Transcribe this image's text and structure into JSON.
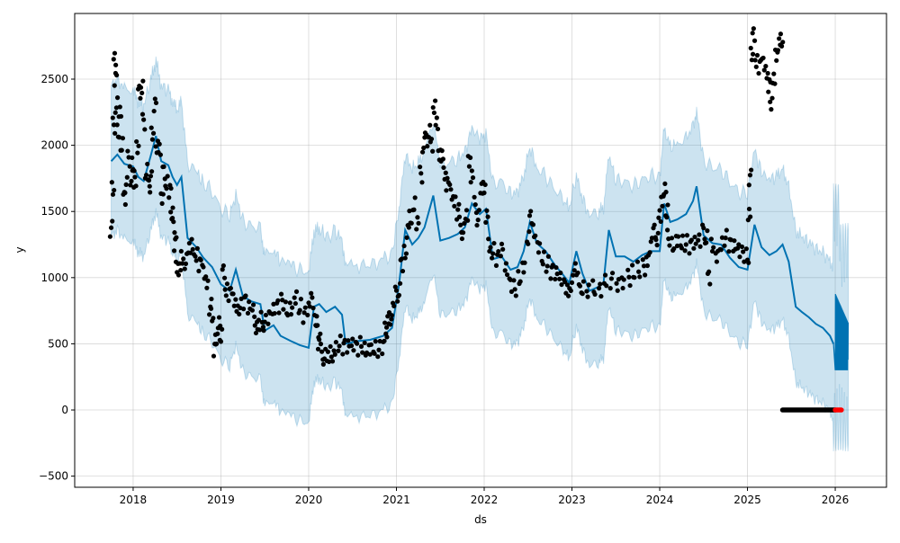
{
  "chart_data": {
    "type": "line",
    "title": "",
    "xlabel": "ds",
    "ylabel": "y",
    "xlim": [
      2017.334,
      2026.584
    ],
    "ylim": [
      -584,
      2996
    ],
    "grid": true,
    "x_ticks": [
      {
        "v": 2018,
        "label": "2018"
      },
      {
        "v": 2019,
        "label": "2019"
      },
      {
        "v": 2020,
        "label": "2020"
      },
      {
        "v": 2021,
        "label": "2021"
      },
      {
        "v": 2022,
        "label": "2022"
      },
      {
        "v": 2023,
        "label": "2023"
      },
      {
        "v": 2024,
        "label": "2024"
      },
      {
        "v": 2025,
        "label": "2025"
      },
      {
        "v": 2026,
        "label": "2026"
      }
    ],
    "y_ticks": [
      {
        "v": -500,
        "label": "−500"
      },
      {
        "v": 0,
        "label": "0"
      },
      {
        "v": 500,
        "label": "500"
      },
      {
        "v": 1000,
        "label": "1000"
      },
      {
        "v": 1500,
        "label": "1500"
      },
      {
        "v": 2000,
        "label": "2000"
      },
      {
        "v": 2500,
        "label": "2500"
      }
    ],
    "colors": {
      "forecast": "#0072B2",
      "band": "#0072B2",
      "actual": "#000000",
      "highlight": "#ff0000"
    },
    "band_halfwidth": 570,
    "forecast": [
      [
        2017.75,
        1880
      ],
      [
        2017.82,
        1930
      ],
      [
        2017.9,
        1860
      ],
      [
        2018.0,
        1840
      ],
      [
        2018.06,
        1760
      ],
      [
        2018.12,
        1730
      ],
      [
        2018.2,
        1920
      ],
      [
        2018.26,
        2070
      ],
      [
        2018.32,
        1880
      ],
      [
        2018.4,
        1850
      ],
      [
        2018.45,
        1760
      ],
      [
        2018.5,
        1700
      ],
      [
        2018.55,
        1760
      ],
      [
        2018.62,
        1300
      ],
      [
        2018.72,
        1230
      ],
      [
        2018.8,
        1150
      ],
      [
        2018.9,
        1080
      ],
      [
        2019.0,
        950
      ],
      [
        2019.1,
        900
      ],
      [
        2019.17,
        1060
      ],
      [
        2019.25,
        860
      ],
      [
        2019.35,
        820
      ],
      [
        2019.45,
        800
      ],
      [
        2019.5,
        600
      ],
      [
        2019.6,
        640
      ],
      [
        2019.68,
        560
      ],
      [
        2019.8,
        520
      ],
      [
        2019.9,
        490
      ],
      [
        2020.0,
        470
      ],
      [
        2020.06,
        780
      ],
      [
        2020.12,
        800
      ],
      [
        2020.2,
        740
      ],
      [
        2020.3,
        780
      ],
      [
        2020.38,
        720
      ],
      [
        2020.42,
        500
      ],
      [
        2020.55,
        520
      ],
      [
        2020.7,
        530
      ],
      [
        2020.85,
        560
      ],
      [
        2020.95,
        620
      ],
      [
        2021.03,
        950
      ],
      [
        2021.1,
        1360
      ],
      [
        2021.18,
        1250
      ],
      [
        2021.25,
        1300
      ],
      [
        2021.32,
        1380
      ],
      [
        2021.42,
        1620
      ],
      [
        2021.5,
        1280
      ],
      [
        2021.6,
        1300
      ],
      [
        2021.7,
        1330
      ],
      [
        2021.78,
        1380
      ],
      [
        2021.86,
        1560
      ],
      [
        2021.95,
        1480
      ],
      [
        2022.02,
        1520
      ],
      [
        2022.1,
        1140
      ],
      [
        2022.2,
        1160
      ],
      [
        2022.3,
        1060
      ],
      [
        2022.38,
        1080
      ],
      [
        2022.45,
        1200
      ],
      [
        2022.52,
        1420
      ],
      [
        2022.6,
        1260
      ],
      [
        2022.7,
        1200
      ],
      [
        2022.8,
        1100
      ],
      [
        2022.9,
        1020
      ],
      [
        2022.97,
        960
      ],
      [
        2023.05,
        1200
      ],
      [
        2023.12,
        1030
      ],
      [
        2023.2,
        900
      ],
      [
        2023.3,
        930
      ],
      [
        2023.36,
        960
      ],
      [
        2023.42,
        1360
      ],
      [
        2023.5,
        1160
      ],
      [
        2023.6,
        1160
      ],
      [
        2023.7,
        1120
      ],
      [
        2023.8,
        1170
      ],
      [
        2023.9,
        1200
      ],
      [
        2024.0,
        1200
      ],
      [
        2024.05,
        1560
      ],
      [
        2024.12,
        1420
      ],
      [
        2024.2,
        1440
      ],
      [
        2024.3,
        1480
      ],
      [
        2024.38,
        1580
      ],
      [
        2024.42,
        1690
      ],
      [
        2024.5,
        1320
      ],
      [
        2024.6,
        1260
      ],
      [
        2024.7,
        1250
      ],
      [
        2024.8,
        1150
      ],
      [
        2024.9,
        1080
      ],
      [
        2025.0,
        1060
      ],
      [
        2025.08,
        1400
      ],
      [
        2025.16,
        1230
      ],
      [
        2025.25,
        1170
      ],
      [
        2025.33,
        1200
      ],
      [
        2025.4,
        1250
      ],
      [
        2025.47,
        1120
      ],
      [
        2025.55,
        780
      ],
      [
        2025.62,
        740
      ],
      [
        2025.7,
        700
      ],
      [
        2025.78,
        650
      ],
      [
        2025.86,
        620
      ],
      [
        2025.94,
        560
      ],
      [
        2025.98,
        500
      ]
    ],
    "forecast_oscillation": {
      "x_start": 2026.0,
      "x_end": 2026.15,
      "min": 300,
      "max": 880
    },
    "actual": [
      [
        2017.75,
        1370
      ],
      [
        2017.77,
        1680
      ],
      [
        2017.78,
        2150
      ],
      [
        2017.79,
        2640
      ],
      [
        2017.8,
        2500
      ],
      [
        2017.81,
        2300
      ],
      [
        2017.83,
        2100
      ],
      [
        2017.85,
        2230
      ],
      [
        2017.87,
        2000
      ],
      [
        2017.9,
        1600
      ],
      [
        2017.92,
        1700
      ],
      [
        2017.95,
        1900
      ],
      [
        2017.98,
        1750
      ],
      [
        2018.0,
        1850
      ],
      [
        2018.02,
        1700
      ],
      [
        2018.05,
        2000
      ],
      [
        2018.07,
        2400
      ],
      [
        2018.1,
        2450
      ],
      [
        2018.12,
        2180
      ],
      [
        2018.15,
        1800
      ],
      [
        2018.18,
        1700
      ],
      [
        2018.2,
        1750
      ],
      [
        2018.22,
        2100
      ],
      [
        2018.25,
        2300
      ],
      [
        2018.27,
        2000
      ],
      [
        2018.3,
        1950
      ],
      [
        2018.33,
        1620
      ],
      [
        2018.35,
        1800
      ],
      [
        2018.38,
        1720
      ],
      [
        2018.42,
        1650
      ],
      [
        2018.44,
        1500
      ],
      [
        2018.46,
        1400
      ],
      [
        2018.48,
        1260
      ],
      [
        2018.5,
        1100
      ],
      [
        2018.53,
        1050
      ],
      [
        2018.56,
        1160
      ],
      [
        2018.6,
        1120
      ],
      [
        2018.64,
        1200
      ],
      [
        2018.68,
        1230
      ],
      [
        2018.72,
        1180
      ],
      [
        2018.76,
        1100
      ],
      [
        2018.8,
        1050
      ],
      [
        2018.84,
        980
      ],
      [
        2018.88,
        780
      ],
      [
        2018.9,
        720
      ],
      [
        2018.93,
        460
      ],
      [
        2018.95,
        560
      ],
      [
        2018.98,
        640
      ],
      [
        2019.0,
        560
      ],
      [
        2019.03,
        1040
      ],
      [
        2019.06,
        920
      ],
      [
        2019.1,
        880
      ],
      [
        2019.14,
        840
      ],
      [
        2019.18,
        800
      ],
      [
        2019.22,
        780
      ],
      [
        2019.27,
        820
      ],
      [
        2019.32,
        760
      ],
      [
        2019.37,
        740
      ],
      [
        2019.4,
        640
      ],
      [
        2019.43,
        620
      ],
      [
        2019.47,
        680
      ],
      [
        2019.5,
        660
      ],
      [
        2019.55,
        700
      ],
      [
        2019.6,
        740
      ],
      [
        2019.65,
        780
      ],
      [
        2019.7,
        820
      ],
      [
        2019.75,
        760
      ],
      [
        2019.8,
        780
      ],
      [
        2019.85,
        860
      ],
      [
        2019.9,
        780
      ],
      [
        2019.95,
        720
      ],
      [
        2020.0,
        760
      ],
      [
        2020.04,
        830
      ],
      [
        2020.08,
        700
      ],
      [
        2020.1,
        600
      ],
      [
        2020.12,
        520
      ],
      [
        2020.15,
        440
      ],
      [
        2020.18,
        400
      ],
      [
        2020.22,
        380
      ],
      [
        2020.26,
        420
      ],
      [
        2020.3,
        470
      ],
      [
        2020.35,
        500
      ],
      [
        2020.4,
        480
      ],
      [
        2020.45,
        470
      ],
      [
        2020.5,
        480
      ],
      [
        2020.55,
        470
      ],
      [
        2020.6,
        490
      ],
      [
        2020.65,
        460
      ],
      [
        2020.7,
        480
      ],
      [
        2020.75,
        470
      ],
      [
        2020.8,
        460
      ],
      [
        2020.85,
        480
      ],
      [
        2020.88,
        600
      ],
      [
        2020.9,
        650
      ],
      [
        2020.93,
        700
      ],
      [
        2020.96,
        760
      ],
      [
        2021.0,
        880
      ],
      [
        2021.03,
        900
      ],
      [
        2021.06,
        1100
      ],
      [
        2021.1,
        1200
      ],
      [
        2021.13,
        1350
      ],
      [
        2021.16,
        1450
      ],
      [
        2021.2,
        1550
      ],
      [
        2021.24,
        1400
      ],
      [
        2021.28,
        1780
      ],
      [
        2021.31,
        2000
      ],
      [
        2021.34,
        2050
      ],
      [
        2021.37,
        2100
      ],
      [
        2021.4,
        2000
      ],
      [
        2021.43,
        2300
      ],
      [
        2021.46,
        2150
      ],
      [
        2021.49,
        1950
      ],
      [
        2021.52,
        1900
      ],
      [
        2021.55,
        1800
      ],
      [
        2021.58,
        1700
      ],
      [
        2021.62,
        1650
      ],
      [
        2021.66,
        1600
      ],
      [
        2021.7,
        1500
      ],
      [
        2021.73,
        1400
      ],
      [
        2021.76,
        1350
      ],
      [
        2021.8,
        1450
      ],
      [
        2021.83,
        1900
      ],
      [
        2021.86,
        1750
      ],
      [
        2021.9,
        1550
      ],
      [
        2021.93,
        1450
      ],
      [
        2021.97,
        1650
      ],
      [
        2022.0,
        1700
      ],
      [
        2022.03,
        1450
      ],
      [
        2022.06,
        1250
      ],
      [
        2022.1,
        1200
      ],
      [
        2022.15,
        1150
      ],
      [
        2022.2,
        1200
      ],
      [
        2022.25,
        1050
      ],
      [
        2022.3,
        950
      ],
      [
        2022.35,
        920
      ],
      [
        2022.4,
        1000
      ],
      [
        2022.45,
        1100
      ],
      [
        2022.5,
        1300
      ],
      [
        2022.53,
        1450
      ],
      [
        2022.57,
        1350
      ],
      [
        2022.62,
        1250
      ],
      [
        2022.67,
        1150
      ],
      [
        2022.72,
        1100
      ],
      [
        2022.77,
        1050
      ],
      [
        2022.82,
        1020
      ],
      [
        2022.87,
        980
      ],
      [
        2022.92,
        940
      ],
      [
        2022.96,
        920
      ],
      [
        2023.0,
        960
      ],
      [
        2023.04,
        1050
      ],
      [
        2023.08,
        980
      ],
      [
        2023.12,
        920
      ],
      [
        2023.18,
        910
      ],
      [
        2023.25,
        920
      ],
      [
        2023.32,
        900
      ],
      [
        2023.38,
        960
      ],
      [
        2023.45,
        980
      ],
      [
        2023.52,
        960
      ],
      [
        2023.58,
        980
      ],
      [
        2023.65,
        1000
      ],
      [
        2023.7,
        1040
      ],
      [
        2023.76,
        1060
      ],
      [
        2023.82,
        1080
      ],
      [
        2023.86,
        1150
      ],
      [
        2023.9,
        1250
      ],
      [
        2023.94,
        1350
      ],
      [
        2023.97,
        1300
      ],
      [
        2024.0,
        1450
      ],
      [
        2024.03,
        1600
      ],
      [
        2024.06,
        1650
      ],
      [
        2024.08,
        1500
      ],
      [
        2024.1,
        1300
      ],
      [
        2024.15,
        1250
      ],
      [
        2024.2,
        1300
      ],
      [
        2024.25,
        1270
      ],
      [
        2024.3,
        1260
      ],
      [
        2024.35,
        1240
      ],
      [
        2024.4,
        1250
      ],
      [
        2024.45,
        1270
      ],
      [
        2024.5,
        1350
      ],
      [
        2024.53,
        1300
      ],
      [
        2024.56,
        1000
      ],
      [
        2024.6,
        1250
      ],
      [
        2024.65,
        1180
      ],
      [
        2024.7,
        1250
      ],
      [
        2024.75,
        1300
      ],
      [
        2024.8,
        1250
      ],
      [
        2024.85,
        1220
      ],
      [
        2024.9,
        1200
      ],
      [
        2024.95,
        1180
      ],
      [
        2025.0,
        1160
      ],
      [
        2025.02,
        1460
      ],
      [
        2025.03,
        1760
      ],
      [
        2025.05,
        2700
      ],
      [
        2025.07,
        2830
      ],
      [
        2025.1,
        2650
      ],
      [
        2025.14,
        2600
      ],
      [
        2025.18,
        2620
      ],
      [
        2025.22,
        2560
      ],
      [
        2025.25,
        2450
      ],
      [
        2025.27,
        2330
      ],
      [
        2025.3,
        2480
      ],
      [
        2025.33,
        2700
      ],
      [
        2025.36,
        2750
      ],
      [
        2025.39,
        2800
      ]
    ],
    "zero_actual": {
      "x_start": 2025.4,
      "x_end": 2026.0,
      "y": 0
    },
    "zero_highlight": {
      "x_start": 2026.0,
      "x_end": 2026.07,
      "y": 0
    }
  }
}
